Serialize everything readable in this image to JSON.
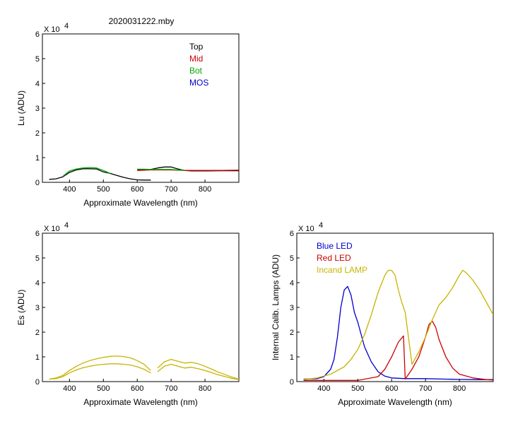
{
  "figure_title": "2020031222.mby",
  "chart_data": [
    {
      "id": "lu",
      "type": "line",
      "title": "",
      "xlabel": "Approximate Wavelength (nm)",
      "ylabel": "Lu (ADU)",
      "multiplier_label": "X 10",
      "multiplier_exp": "4",
      "xlim": [
        320,
        900
      ],
      "ylim": [
        0,
        6
      ],
      "xticks": [
        400,
        500,
        600,
        700,
        800
      ],
      "yticks": [
        0,
        1,
        2,
        3,
        4,
        5,
        6
      ],
      "legend": "top-right",
      "series": [
        {
          "name": "Top",
          "color": "#000000",
          "x": [
            340,
            360,
            380,
            400,
            420,
            440,
            460,
            480,
            500,
            520,
            540,
            560,
            580,
            600,
            620,
            640
          ],
          "y": [
            0.12,
            0.14,
            0.22,
            0.4,
            0.5,
            0.55,
            0.55,
            0.54,
            0.42,
            0.36,
            0.28,
            0.2,
            0.14,
            0.1,
            0.09,
            0.09
          ]
        },
        {
          "name": "Top",
          "color": "#000000",
          "x": [
            600,
            620,
            640,
            660,
            680,
            700,
            720,
            740,
            760,
            800,
            850,
            900
          ],
          "y": [
            0.52,
            0.52,
            0.52,
            0.58,
            0.62,
            0.62,
            0.54,
            0.48,
            0.46,
            0.46,
            0.47,
            0.47
          ]
        },
        {
          "name": "Mid",
          "color": "#cc0000",
          "x": [
            600,
            620,
            640,
            660,
            680,
            700,
            720,
            740,
            760,
            800,
            850,
            900
          ],
          "y": [
            0.48,
            0.49,
            0.5,
            0.5,
            0.5,
            0.5,
            0.49,
            0.48,
            0.48,
            0.48,
            0.48,
            0.49
          ]
        },
        {
          "name": "Bot",
          "color": "#00aa00",
          "x": [
            380,
            400,
            420,
            440,
            460,
            480,
            500,
            520
          ],
          "y": [
            0.24,
            0.46,
            0.54,
            0.58,
            0.6,
            0.58,
            0.48,
            0.36
          ]
        },
        {
          "name": "Bot",
          "color": "#00aa00",
          "x": [
            600,
            620,
            640,
            660,
            680,
            700,
            720,
            740
          ],
          "y": [
            0.53,
            0.53,
            0.52,
            0.52,
            0.52,
            0.52,
            0.5,
            0.48
          ]
        },
        {
          "name": "MOS",
          "color": "#0000cc",
          "x": [],
          "y": []
        }
      ]
    },
    {
      "id": "es",
      "type": "line",
      "title": "",
      "xlabel": "Approximate Wavelength (nm)",
      "ylabel": "Es (ADU)",
      "multiplier_label": "X 10",
      "multiplier_exp": "4",
      "xlim": [
        320,
        900
      ],
      "ylim": [
        0,
        6
      ],
      "xticks": [
        400,
        500,
        600,
        700,
        800
      ],
      "yticks": [
        0,
        1,
        2,
        3,
        4,
        5,
        6
      ],
      "series": [
        {
          "color": "#c8b400",
          "x": [
            340,
            360,
            380,
            400,
            420,
            440,
            460,
            480,
            500,
            520,
            540,
            560,
            580,
            600,
            620,
            640
          ],
          "y": [
            0.1,
            0.15,
            0.25,
            0.45,
            0.62,
            0.75,
            0.85,
            0.92,
            0.98,
            1.02,
            1.03,
            1.01,
            0.96,
            0.85,
            0.7,
            0.45
          ]
        },
        {
          "color": "#c8b400",
          "x": [
            340,
            360,
            380,
            400,
            420,
            440,
            460,
            480,
            500,
            520,
            540,
            560,
            580,
            600,
            620,
            640
          ],
          "y": [
            0.1,
            0.12,
            0.2,
            0.35,
            0.47,
            0.56,
            0.62,
            0.67,
            0.7,
            0.72,
            0.72,
            0.7,
            0.67,
            0.6,
            0.5,
            0.35
          ]
        },
        {
          "color": "#c8b400",
          "x": [
            660,
            680,
            700,
            720,
            740,
            760,
            780,
            800,
            820,
            840,
            860,
            880,
            900
          ],
          "y": [
            0.55,
            0.8,
            0.9,
            0.82,
            0.75,
            0.78,
            0.72,
            0.62,
            0.5,
            0.38,
            0.28,
            0.18,
            0.1
          ]
        },
        {
          "color": "#c8b400",
          "x": [
            660,
            680,
            700,
            720,
            740,
            760,
            780,
            800,
            820,
            840,
            860,
            880,
            900
          ],
          "y": [
            0.4,
            0.62,
            0.7,
            0.62,
            0.55,
            0.58,
            0.52,
            0.45,
            0.36,
            0.27,
            0.2,
            0.13,
            0.08
          ]
        }
      ]
    },
    {
      "id": "lamps",
      "type": "line",
      "title": "",
      "xlabel": "Approximate Wavelength (nm)",
      "ylabel": "Internal Calib. Lamps (ADU)",
      "multiplier_label": "X 10",
      "multiplier_exp": "4",
      "xlim": [
        320,
        900
      ],
      "ylim": [
        0,
        6
      ],
      "xticks": [
        400,
        500,
        600,
        700,
        800
      ],
      "yticks": [
        0,
        1,
        2,
        3,
        4,
        5,
        6
      ],
      "legend": "top-left",
      "series": [
        {
          "name": "Blue LED",
          "color": "#0000cc",
          "x": [
            340,
            380,
            400,
            420,
            430,
            440,
            450,
            460,
            470,
            480,
            490,
            500,
            510,
            520,
            540,
            560,
            580,
            600,
            640,
            700,
            760,
            800,
            850,
            900
          ],
          "y": [
            0.1,
            0.12,
            0.2,
            0.5,
            0.9,
            1.8,
            3.0,
            3.7,
            3.85,
            3.5,
            2.8,
            2.4,
            1.9,
            1.4,
            0.8,
            0.4,
            0.22,
            0.15,
            0.12,
            0.12,
            0.1,
            0.09,
            0.08,
            0.08
          ]
        },
        {
          "name": "Red LED",
          "color": "#cc0000",
          "x": [
            340,
            400,
            500,
            560,
            580,
            600,
            620,
            635,
            640,
            660,
            680,
            700,
            710,
            720,
            730,
            740,
            760,
            780,
            800,
            840,
            880,
            900
          ],
          "y": [
            0.05,
            0.05,
            0.05,
            0.2,
            0.5,
            1.0,
            1.6,
            1.85,
            0.1,
            0.5,
            1.0,
            1.8,
            2.3,
            2.45,
            2.2,
            1.7,
            1.0,
            0.55,
            0.3,
            0.15,
            0.08,
            0.06
          ]
        },
        {
          "name": "Incand LAMP",
          "color": "#c8b400",
          "x": [
            340,
            380,
            420,
            460,
            480,
            500,
            520,
            540,
            560,
            580,
            590,
            600,
            610,
            620,
            630,
            640,
            660,
            680,
            700,
            720,
            740,
            760,
            780,
            800,
            810,
            820,
            840,
            860,
            880,
            900
          ],
          "y": [
            0.08,
            0.15,
            0.3,
            0.6,
            0.9,
            1.3,
            1.9,
            2.7,
            3.6,
            4.3,
            4.5,
            4.5,
            4.3,
            3.7,
            3.2,
            2.8,
            0.7,
            1.2,
            1.8,
            2.5,
            3.1,
            3.4,
            3.8,
            4.3,
            4.5,
            4.4,
            4.1,
            3.7,
            3.2,
            2.7
          ]
        }
      ]
    }
  ]
}
